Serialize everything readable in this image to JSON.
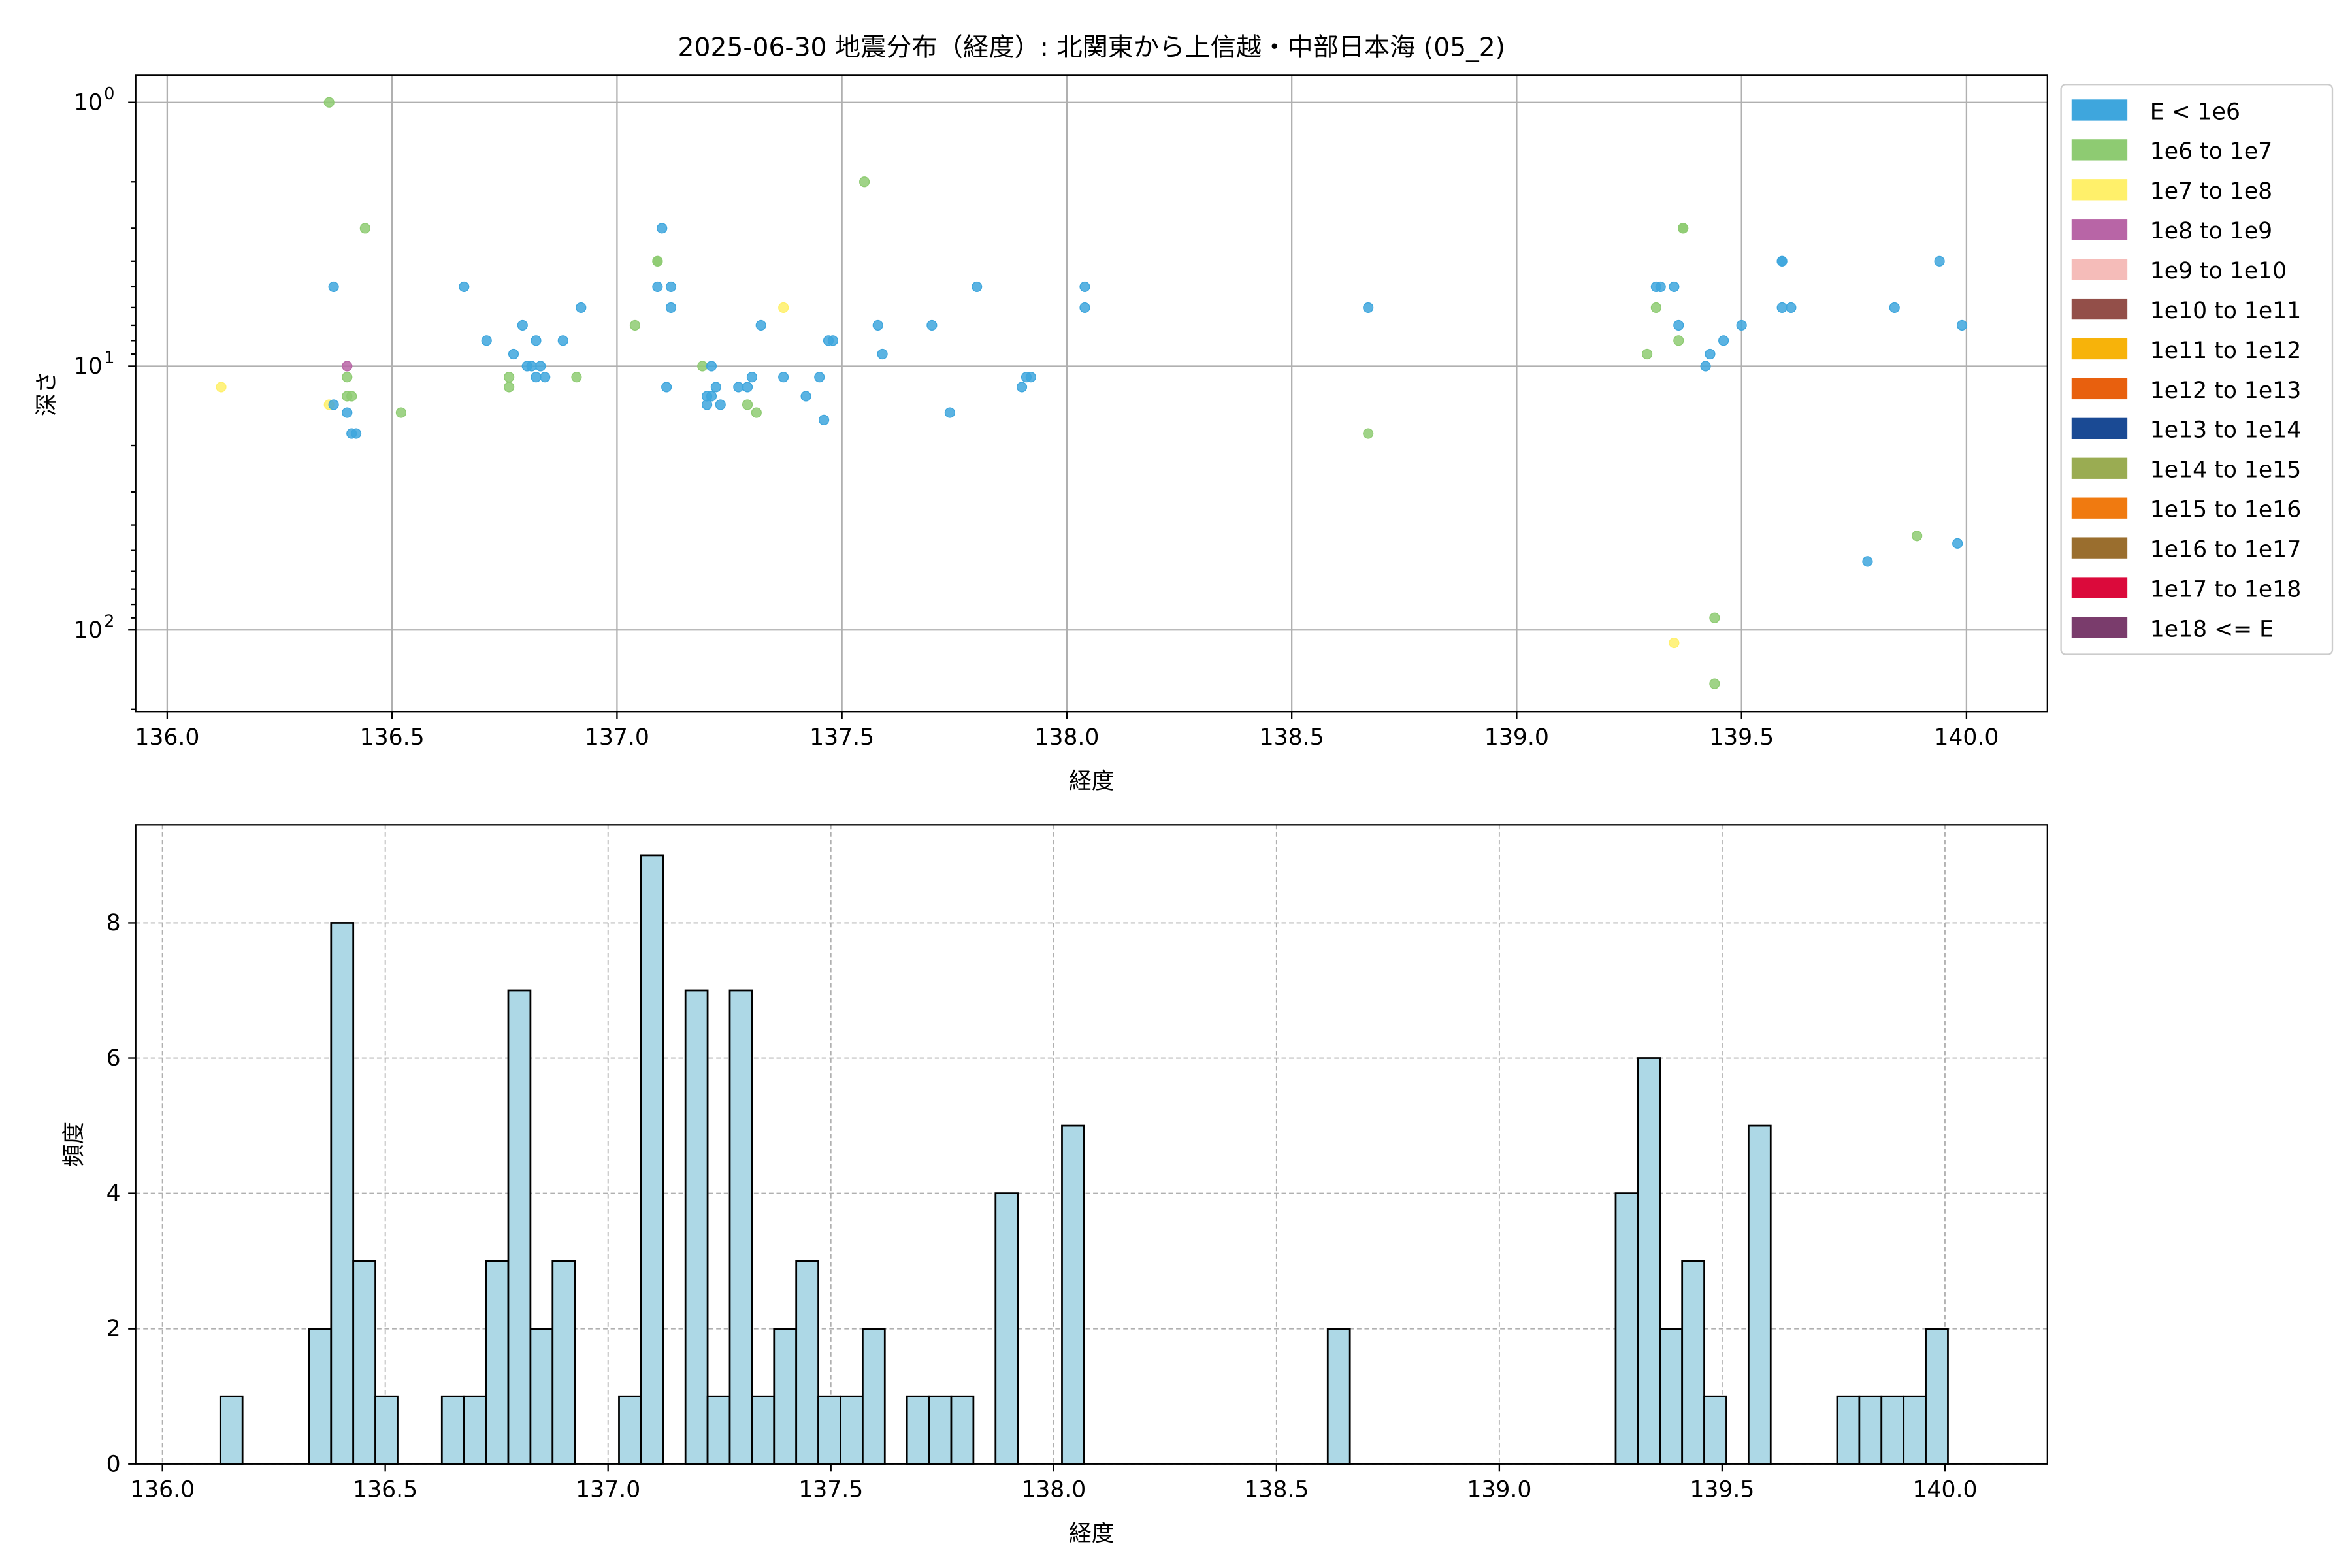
{
  "chart_data": [
    {
      "type": "scatter",
      "title": "2025-06-30 地震分布（経度）: 北関東から上信越・中部日本海 (05_2)",
      "xlabel": "経度",
      "ylabel": "深さ",
      "xlim": [
        135.93,
        140.18
      ],
      "ylim": [
        204,
        0.79
      ],
      "yscale": "log",
      "y_inverted": true,
      "grid": true,
      "x_ticks": [
        "136.0",
        "136.5",
        "137.0",
        "137.5",
        "138.0",
        "138.5",
        "139.0",
        "139.5",
        "140.0"
      ],
      "x_tick_values": [
        136.0,
        136.5,
        137.0,
        137.5,
        138.0,
        138.5,
        139.0,
        139.5,
        140.0
      ],
      "y_ticks": [
        {
          "base": "10",
          "exp": "0",
          "value": 1
        },
        {
          "base": "10",
          "exp": "1",
          "value": 10
        },
        {
          "base": "10",
          "exp": "2",
          "value": 100
        }
      ],
      "legend_placement": "outside-right",
      "legend": [
        {
          "label": "E < 1e6",
          "color": "#3ea6dd"
        },
        {
          "label": "1e6 to 1e7",
          "color": "#8ecb72"
        },
        {
          "label": "1e7 to 1e8",
          "color": "#fff06a"
        },
        {
          "label": "1e8 to 1e9",
          "color": "#b865a6"
        },
        {
          "label": "1e9 to 1e10",
          "color": "#f5bcb9"
        },
        {
          "label": "1e10 to 1e11",
          "color": "#934f49"
        },
        {
          "label": "1e11 to 1e12",
          "color": "#f7b30a"
        },
        {
          "label": "1e12 to 1e13",
          "color": "#e8600e"
        },
        {
          "label": "1e13 to 1e14",
          "color": "#1a4a94"
        },
        {
          "label": "1e14 to 1e15",
          "color": "#9aac52"
        },
        {
          "label": "1e15 to 1e16",
          "color": "#f07a10"
        },
        {
          "label": "1e16 to 1e17",
          "color": "#9a6e2e"
        },
        {
          "label": "1e17 to 1e18",
          "color": "#db0a3b"
        },
        {
          "label": "1e18 <= E",
          "color": "#7a3c6c"
        }
      ],
      "points_format": [
        "longitude",
        "depth",
        "energy_class_index"
      ],
      "points": [
        [
          136.36,
          1.0,
          1
        ],
        [
          136.12,
          12,
          2
        ],
        [
          136.37,
          5,
          0
        ],
        [
          136.44,
          3,
          1
        ],
        [
          136.4,
          10,
          3
        ],
        [
          136.36,
          14,
          2
        ],
        [
          136.37,
          14,
          0
        ],
        [
          136.4,
          11,
          1
        ],
        [
          136.4,
          13,
          1
        ],
        [
          136.41,
          13,
          1
        ],
        [
          136.4,
          15,
          0
        ],
        [
          136.41,
          18,
          0
        ],
        [
          136.42,
          18,
          0
        ],
        [
          136.52,
          15,
          1
        ],
        [
          136.66,
          5,
          0
        ],
        [
          136.71,
          8,
          0
        ],
        [
          136.77,
          9,
          0
        ],
        [
          136.79,
          7,
          0
        ],
        [
          136.76,
          11,
          1
        ],
        [
          136.76,
          12,
          1
        ],
        [
          136.8,
          10,
          0
        ],
        [
          136.81,
          10,
          0
        ],
        [
          136.82,
          8,
          0
        ],
        [
          136.82,
          11,
          0
        ],
        [
          136.83,
          10,
          0
        ],
        [
          136.84,
          11,
          0
        ],
        [
          136.88,
          8,
          0
        ],
        [
          136.91,
          11,
          1
        ],
        [
          136.92,
          6,
          0
        ],
        [
          137.04,
          7,
          1
        ],
        [
          137.09,
          4,
          1
        ],
        [
          137.09,
          4,
          1
        ],
        [
          137.1,
          3,
          0
        ],
        [
          137.09,
          5,
          0
        ],
        [
          137.12,
          5,
          0
        ],
        [
          137.12,
          6,
          0
        ],
        [
          137.11,
          12,
          0
        ],
        [
          137.19,
          10,
          1
        ],
        [
          137.21,
          10,
          0
        ],
        [
          137.2,
          13,
          0
        ],
        [
          137.22,
          12,
          0
        ],
        [
          137.21,
          13,
          0
        ],
        [
          137.2,
          14,
          0
        ],
        [
          137.23,
          14,
          0
        ],
        [
          137.27,
          12,
          0
        ],
        [
          137.29,
          12,
          0
        ],
        [
          137.3,
          11,
          0
        ],
        [
          137.29,
          14,
          1
        ],
        [
          137.31,
          15,
          1
        ],
        [
          137.32,
          7,
          0
        ],
        [
          137.37,
          6,
          2
        ],
        [
          137.37,
          11,
          0
        ],
        [
          137.42,
          13,
          0
        ],
        [
          137.45,
          11,
          0
        ],
        [
          137.46,
          16,
          0
        ],
        [
          137.47,
          8,
          0
        ],
        [
          137.48,
          8,
          0
        ],
        [
          137.55,
          2,
          1
        ],
        [
          137.58,
          7,
          0
        ],
        [
          137.59,
          9,
          0
        ],
        [
          137.7,
          7,
          0
        ],
        [
          137.74,
          15,
          0
        ],
        [
          137.8,
          5,
          0
        ],
        [
          137.9,
          12,
          0
        ],
        [
          137.91,
          11,
          0
        ],
        [
          137.92,
          11,
          0
        ],
        [
          138.04,
          5,
          0
        ],
        [
          138.04,
          6,
          0
        ],
        [
          138.67,
          6,
          0
        ],
        [
          138.67,
          18,
          1
        ],
        [
          139.29,
          9,
          1
        ],
        [
          139.31,
          6,
          1
        ],
        [
          139.31,
          5,
          0
        ],
        [
          139.32,
          5,
          0
        ],
        [
          139.35,
          5,
          0
        ],
        [
          139.36,
          7,
          0
        ],
        [
          139.36,
          8,
          1
        ],
        [
          139.37,
          3,
          1
        ],
        [
          139.37,
          3,
          1
        ],
        [
          139.42,
          10,
          0
        ],
        [
          139.43,
          9,
          0
        ],
        [
          139.46,
          8,
          0
        ],
        [
          139.35,
          112,
          2
        ],
        [
          139.44,
          90,
          1
        ],
        [
          139.44,
          160,
          1
        ],
        [
          139.5,
          7,
          0
        ],
        [
          139.59,
          4,
          0
        ],
        [
          139.59,
          4,
          0
        ],
        [
          139.59,
          6,
          0
        ],
        [
          139.61,
          6,
          0
        ],
        [
          139.78,
          55,
          0
        ],
        [
          139.84,
          6,
          0
        ],
        [
          139.94,
          4,
          0
        ],
        [
          139.89,
          44,
          1
        ],
        [
          139.98,
          47,
          0
        ],
        [
          139.99,
          7,
          0
        ]
      ]
    },
    {
      "type": "bar",
      "subtype": "histogram",
      "xlabel": "経度",
      "ylabel": "頻度",
      "xlim": [
        135.94,
        140.23
      ],
      "ylim": [
        0,
        9.45
      ],
      "grid": true,
      "bar_color": "#add8e6",
      "bin_start": 136.13,
      "bin_width": 0.0497,
      "counts": [
        1,
        0,
        0,
        0,
        2,
        8,
        3,
        1,
        0,
        0,
        1,
        1,
        3,
        7,
        2,
        3,
        0,
        0,
        1,
        9,
        0,
        7,
        1,
        7,
        1,
        2,
        3,
        1,
        1,
        2,
        0,
        1,
        1,
        1,
        0,
        4,
        0,
        0,
        5,
        0,
        0,
        0,
        0,
        0,
        0,
        0,
        0,
        0,
        0,
        0,
        2,
        0,
        0,
        0,
        0,
        0,
        0,
        0,
        0,
        0,
        0,
        0,
        0,
        4,
        6,
        2,
        3,
        1,
        0,
        5,
        0,
        0,
        0,
        1,
        1,
        1,
        1,
        2
      ],
      "x_ticks": [
        "136.0",
        "136.5",
        "137.0",
        "137.5",
        "138.0",
        "138.5",
        "139.0",
        "139.5",
        "140.0"
      ],
      "x_tick_values": [
        136.0,
        136.5,
        137.0,
        137.5,
        138.0,
        138.5,
        139.0,
        139.5,
        140.0
      ],
      "y_ticks": [
        "0",
        "2",
        "4",
        "6",
        "8"
      ],
      "y_tick_values": [
        0,
        2,
        4,
        6,
        8
      ]
    }
  ]
}
